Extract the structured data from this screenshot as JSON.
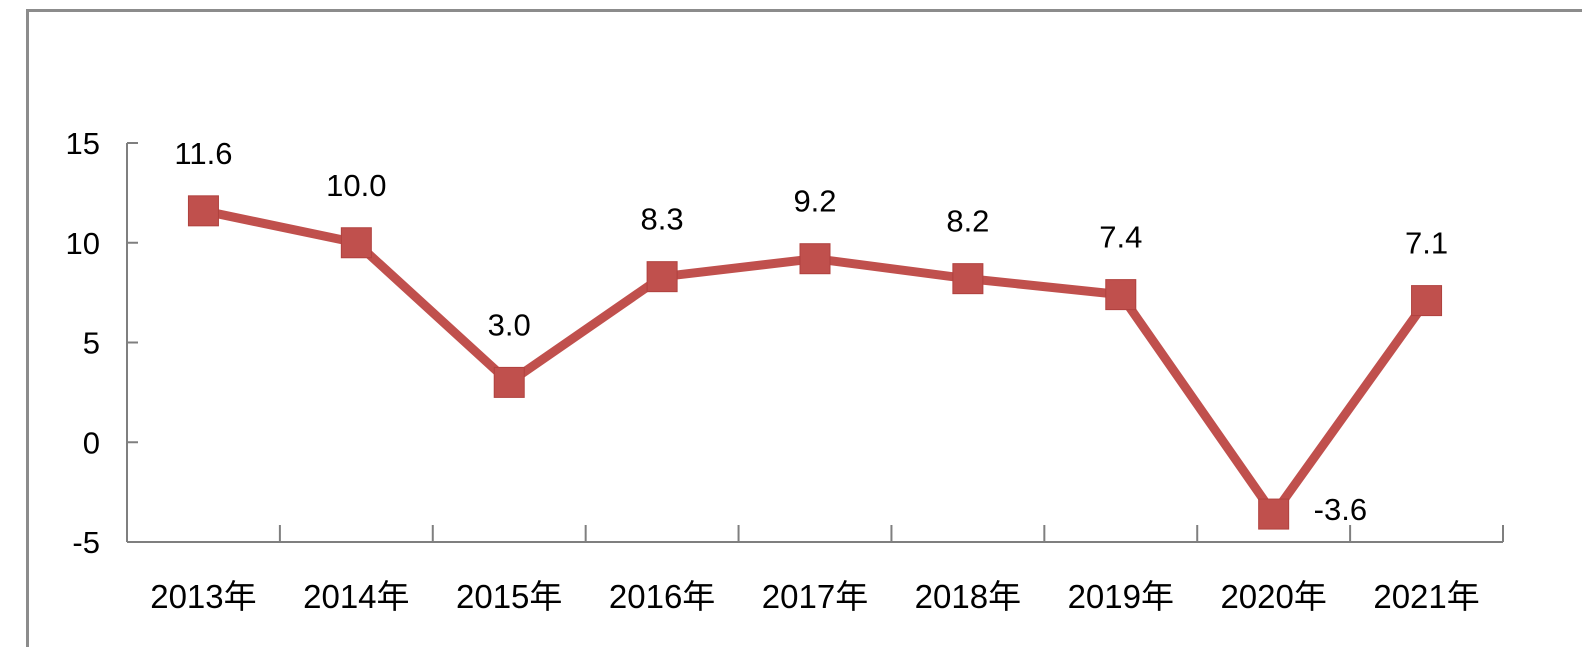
{
  "chart_data": {
    "type": "line",
    "title": "",
    "xlabel": "",
    "ylabel": "",
    "categories": [
      "2013年",
      "2014年",
      "2015年",
      "2016年",
      "2017年",
      "2018年",
      "2019年",
      "2020年",
      "2021年"
    ],
    "series": [
      {
        "values": [
          11.6,
          10.0,
          3.0,
          8.3,
          9.2,
          8.2,
          7.4,
          -3.6,
          7.1
        ],
        "labels": [
          "11.6",
          "10.0",
          "3.0",
          "8.3",
          "9.2",
          "8.2",
          "7.4",
          "-3.6",
          "7.1"
        ],
        "color": "#c0504d",
        "marker": "square"
      }
    ],
    "ylim": [
      -5,
      15
    ],
    "yticks": [
      15,
      10,
      5,
      0,
      -5
    ],
    "ytick_labels": [
      "15",
      "10",
      "5",
      "0",
      "-5"
    ],
    "grid": false,
    "legend": "none",
    "axis_color": "#7f7f7f"
  }
}
